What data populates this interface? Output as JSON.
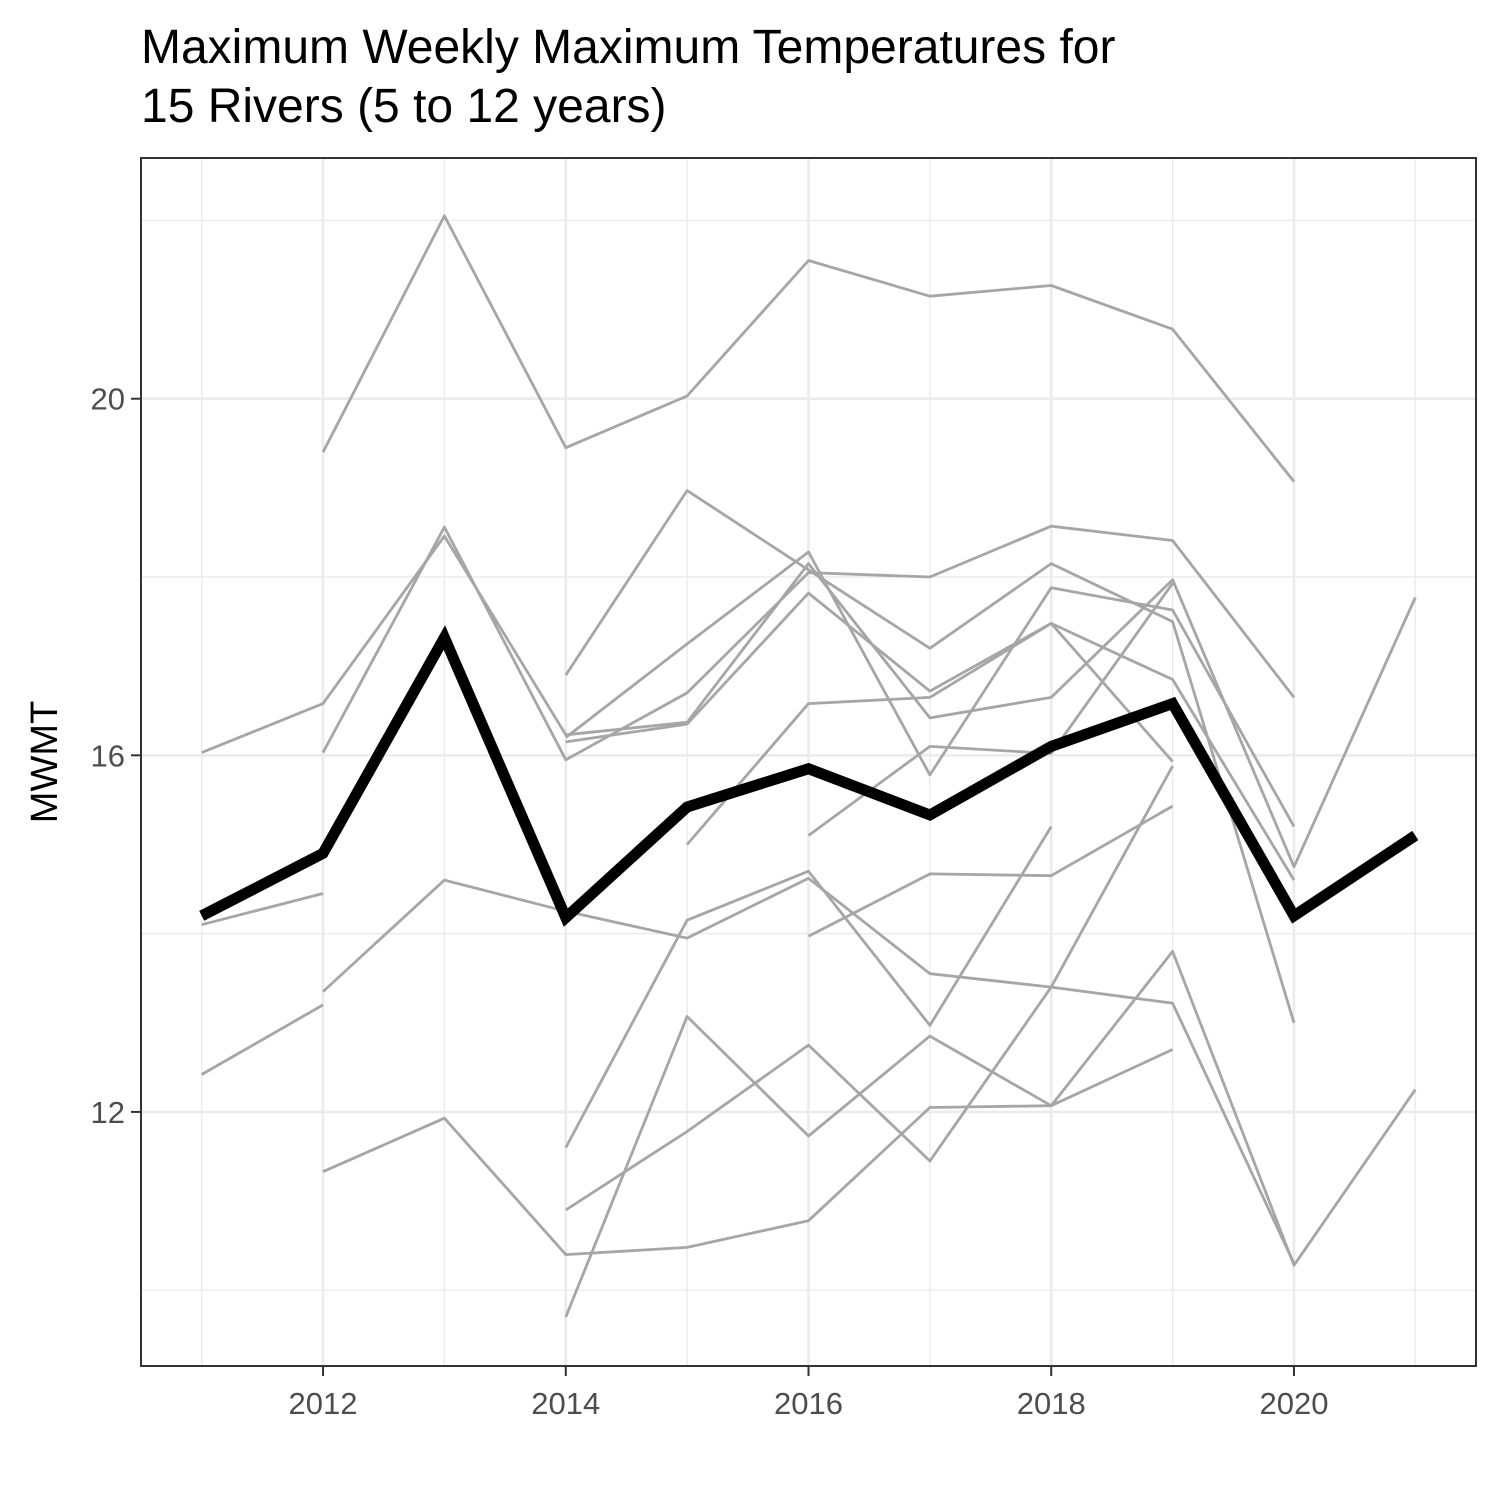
{
  "chart_data": {
    "type": "line",
    "title_lines": [
      "Maximum Weekly Maximum Temperatures for",
      "15 Rivers (5 to 12 years)"
    ],
    "xlabel": "",
    "ylabel": "MWMT",
    "xlim": [
      2010.5,
      2021.5
    ],
    "ylim": [
      9.15,
      22.7
    ],
    "x_major_ticks": [
      2012,
      2014,
      2016,
      2018,
      2020
    ],
    "x_minor_ticks": [
      2011,
      2013,
      2015,
      2017,
      2019,
      2021
    ],
    "y_major_ticks": [
      12,
      16,
      20
    ],
    "y_minor_ticks": [
      10,
      14,
      18,
      22
    ],
    "x_tick_labels": [
      "2012",
      "2014",
      "2016",
      "2018",
      "2020"
    ],
    "y_tick_labels": [
      "12",
      "16",
      "20"
    ],
    "grid": true,
    "legend": "none",
    "colors": {
      "rivers": "#a6a6a6",
      "mean": "#000000"
    },
    "series": [
      {
        "points": [
          [
            2012,
            19.4
          ],
          [
            2013,
            22.05
          ],
          [
            2014,
            19.45
          ],
          [
            2015,
            20.03
          ],
          [
            2016,
            21.55
          ],
          [
            2017,
            21.15
          ],
          [
            2018,
            21.27
          ],
          [
            2019,
            20.78
          ],
          [
            2020,
            19.07
          ]
        ]
      },
      {
        "points": [
          [
            2011,
            16.03
          ],
          [
            2012,
            16.58
          ],
          [
            2013,
            18.46
          ],
          [
            2014,
            16.23
          ],
          [
            2015,
            16.37
          ],
          [
            2016,
            18.15
          ],
          [
            2017,
            16.42
          ],
          [
            2018,
            16.65
          ],
          [
            2019,
            17.97
          ],
          [
            2020,
            14.75
          ],
          [
            2021,
            17.77
          ]
        ]
      },
      {
        "points": [
          [
            2012,
            16.03
          ],
          [
            2013,
            18.56
          ],
          [
            2014,
            15.95
          ],
          [
            2015,
            16.7
          ],
          [
            2016,
            18.05
          ],
          [
            2017,
            18.0
          ],
          [
            2018,
            18.57
          ],
          [
            2019,
            18.41
          ],
          [
            2020,
            16.65
          ]
        ]
      },
      {
        "points": [
          [
            2014,
            16.9
          ],
          [
            2015,
            18.97
          ],
          [
            2016,
            18.08
          ],
          [
            2017,
            17.2
          ],
          [
            2018,
            18.15
          ],
          [
            2019,
            17.5
          ],
          [
            2020,
            13.0
          ]
        ]
      },
      {
        "points": [
          [
            2014,
            16.2
          ],
          [
            2015,
            17.25
          ],
          [
            2016,
            18.28
          ],
          [
            2017,
            15.78
          ],
          [
            2018,
            17.88
          ],
          [
            2019,
            17.63
          ],
          [
            2020,
            15.2
          ]
        ]
      },
      {
        "points": [
          [
            2014,
            16.15
          ],
          [
            2015,
            16.35
          ],
          [
            2016,
            17.82
          ],
          [
            2017,
            16.72
          ],
          [
            2018,
            17.48
          ],
          [
            2019,
            16.85
          ],
          [
            2020,
            14.6
          ]
        ]
      },
      {
        "points": [
          [
            2011,
            14.1
          ],
          [
            2012,
            14.45
          ]
        ]
      },
      {
        "points": [
          [
            2012,
            13.35
          ],
          [
            2013,
            14.6
          ],
          [
            2014,
            14.25
          ],
          [
            2015,
            13.95
          ],
          [
            2016,
            14.62
          ],
          [
            2017,
            13.55
          ],
          [
            2018,
            13.4
          ],
          [
            2019,
            13.22
          ],
          [
            2020,
            10.3
          ]
        ]
      },
      {
        "points": [
          [
            2011,
            12.42
          ],
          [
            2012,
            13.2
          ]
        ]
      },
      {
        "points": [
          [
            2012,
            11.33
          ],
          [
            2013,
            11.93
          ],
          [
            2014,
            10.4
          ],
          [
            2015,
            10.48
          ],
          [
            2016,
            10.78
          ],
          [
            2017,
            12.05
          ],
          [
            2018,
            12.07
          ],
          [
            2019,
            13.8
          ],
          [
            2020,
            10.28
          ],
          [
            2021,
            12.25
          ]
        ]
      },
      {
        "points": [
          [
            2014,
            11.6
          ],
          [
            2015,
            14.15
          ],
          [
            2016,
            14.7
          ],
          [
            2017,
            12.97
          ],
          [
            2018,
            15.2
          ]
        ]
      },
      {
        "points": [
          [
            2014,
            9.7
          ],
          [
            2015,
            13.07
          ],
          [
            2016,
            11.73
          ],
          [
            2017,
            12.85
          ],
          [
            2018,
            12.07
          ],
          [
            2019,
            12.7
          ]
        ]
      },
      {
        "points": [
          [
            2014,
            10.9
          ],
          [
            2015,
            11.78
          ],
          [
            2016,
            12.75
          ],
          [
            2017,
            11.45
          ],
          [
            2018,
            13.4
          ],
          [
            2019,
            15.88
          ]
        ]
      },
      {
        "points": [
          [
            2015,
            15.0
          ],
          [
            2016,
            16.58
          ],
          [
            2017,
            16.65
          ],
          [
            2018,
            17.48
          ],
          [
            2019,
            15.93
          ]
        ]
      },
      {
        "points": [
          [
            2016,
            13.97
          ],
          [
            2017,
            14.67
          ],
          [
            2018,
            14.65
          ],
          [
            2019,
            15.43
          ]
        ]
      },
      {
        "points": [
          [
            2016,
            15.1
          ],
          [
            2017,
            16.1
          ],
          [
            2018,
            16.02
          ],
          [
            2019,
            17.93
          ]
        ]
      }
    ],
    "mean_series": {
      "points": [
        [
          2011,
          14.2
        ],
        [
          2012,
          14.9
        ],
        [
          2013,
          17.32
        ],
        [
          2014,
          14.18
        ],
        [
          2015,
          15.42
        ],
        [
          2016,
          15.85
        ],
        [
          2017,
          15.33
        ],
        [
          2018,
          16.1
        ],
        [
          2019,
          16.58
        ],
        [
          2020,
          14.2
        ],
        [
          2021,
          15.1
        ]
      ]
    }
  }
}
